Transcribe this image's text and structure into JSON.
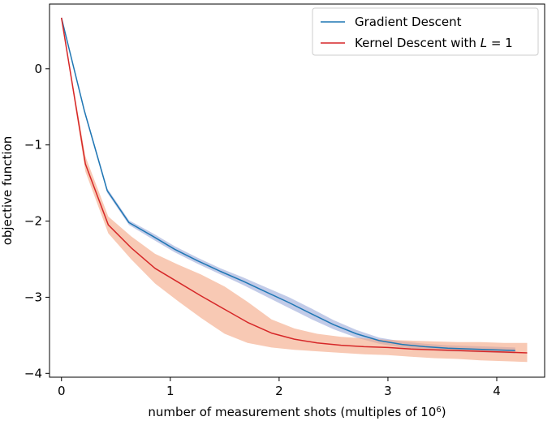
{
  "chart_data": {
    "type": "line",
    "title": "",
    "xlabel": "number of measurement shots (multiples of 10",
    "xlabel_superscript": "6",
    "xlabel_suffix": ")",
    "ylabel": "objective function",
    "xlim": [
      -0.11,
      4.44
    ],
    "ylim": [
      -4.05,
      0.85
    ],
    "xticks": [
      0,
      1,
      2,
      3,
      4
    ],
    "xtick_labels": [
      "0",
      "1",
      "2",
      "3",
      "4"
    ],
    "yticks": [
      0,
      -1,
      -2,
      -3,
      -4
    ],
    "ytick_labels": [
      "0",
      "−1",
      "−2",
      "−3",
      "−4"
    ],
    "grid": false,
    "legend_position": "top-right",
    "series": [
      {
        "name": "Gradient Descent",
        "color": "#1f77b4",
        "band_color": "#8fa0d6",
        "x": [
          0,
          0.21,
          0.42,
          0.62,
          0.84,
          1.04,
          1.25,
          1.46,
          1.67,
          1.88,
          2.09,
          2.3,
          2.5,
          2.71,
          2.92,
          3.13,
          3.34,
          3.55,
          3.76,
          3.97,
          4.17
        ],
        "y": [
          0.67,
          -0.55,
          -1.6,
          -2.02,
          -2.2,
          -2.37,
          -2.52,
          -2.66,
          -2.79,
          -2.93,
          -3.07,
          -3.22,
          -3.36,
          -3.48,
          -3.57,
          -3.62,
          -3.65,
          -3.67,
          -3.68,
          -3.69,
          -3.7
        ],
        "y_lower": [
          0.67,
          -0.58,
          -1.63,
          -2.05,
          -2.24,
          -2.41,
          -2.56,
          -2.7,
          -2.84,
          -2.99,
          -3.14,
          -3.29,
          -3.42,
          -3.53,
          -3.61,
          -3.66,
          -3.69,
          -3.71,
          -3.72,
          -3.73,
          -3.74
        ],
        "y_upper": [
          0.67,
          -0.52,
          -1.57,
          -1.99,
          -2.16,
          -2.33,
          -2.48,
          -2.62,
          -2.74,
          -2.87,
          -3.0,
          -3.15,
          -3.3,
          -3.43,
          -3.53,
          -3.58,
          -3.61,
          -3.63,
          -3.64,
          -3.65,
          -3.66
        ]
      },
      {
        "name": "Kernel Descent with ",
        "name_math": "L",
        "name_suffix": " = 1",
        "color": "#d62728",
        "band_color": "#f4a582",
        "x": [
          0,
          0.22,
          0.43,
          0.64,
          0.86,
          1.07,
          1.28,
          1.5,
          1.71,
          1.93,
          2.14,
          2.35,
          2.57,
          2.78,
          3.0,
          3.21,
          3.42,
          3.64,
          3.85,
          4.07,
          4.28
        ],
        "y": [
          0.67,
          -1.25,
          -2.05,
          -2.35,
          -2.62,
          -2.8,
          -2.98,
          -3.16,
          -3.33,
          -3.47,
          -3.55,
          -3.6,
          -3.63,
          -3.65,
          -3.66,
          -3.68,
          -3.69,
          -3.7,
          -3.71,
          -3.72,
          -3.73
        ],
        "y_lower": [
          0.67,
          -1.35,
          -2.16,
          -2.5,
          -2.82,
          -3.05,
          -3.27,
          -3.48,
          -3.6,
          -3.66,
          -3.69,
          -3.71,
          -3.73,
          -3.75,
          -3.76,
          -3.78,
          -3.8,
          -3.81,
          -3.83,
          -3.84,
          -3.85
        ],
        "y_upper": [
          0.67,
          -1.15,
          -1.94,
          -2.2,
          -2.43,
          -2.57,
          -2.7,
          -2.86,
          -3.06,
          -3.29,
          -3.41,
          -3.48,
          -3.52,
          -3.54,
          -3.56,
          -3.57,
          -3.58,
          -3.59,
          -3.59,
          -3.6,
          -3.6
        ]
      }
    ]
  }
}
